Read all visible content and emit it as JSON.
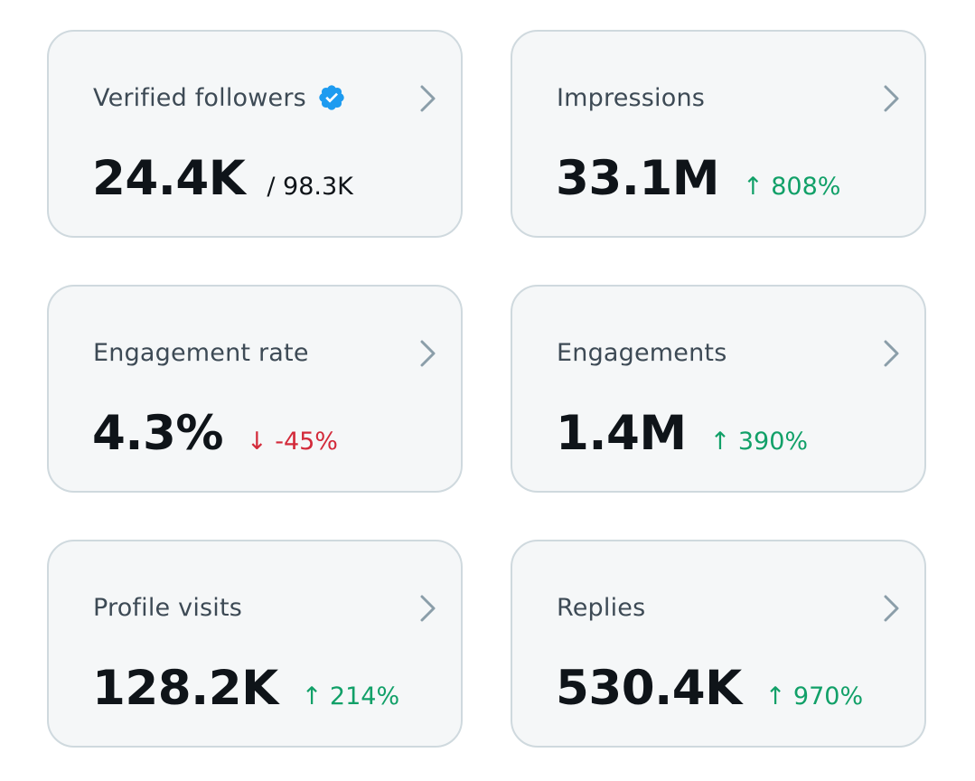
{
  "colors": {
    "card_bg": "#f5f7f8",
    "card_border": "#cfd9de",
    "title": "#3d4a55",
    "value": "#0f1419",
    "up": "#11a068",
    "down": "#d32a3a",
    "verified": "#1d9bf0",
    "chevron": "#8b9ea9"
  },
  "cards": [
    {
      "title": "Verified followers",
      "value": "24.4K",
      "sub": "/ 98.3K",
      "verified_icon": "verified-badge-icon"
    },
    {
      "title": "Impressions",
      "value": "33.1M",
      "change": "↑ 808%",
      "trend": "up"
    },
    {
      "title": "Engagement rate",
      "value": "4.3%",
      "change": "↓ -45%",
      "trend": "down"
    },
    {
      "title": "Engagements",
      "value": "1.4M",
      "change": "↑ 390%",
      "trend": "up"
    },
    {
      "title": "Profile visits",
      "value": "128.2K",
      "change": "↑ 214%",
      "trend": "up"
    },
    {
      "title": "Replies",
      "value": "530.4K",
      "change": "↑ 970%",
      "trend": "up"
    }
  ]
}
